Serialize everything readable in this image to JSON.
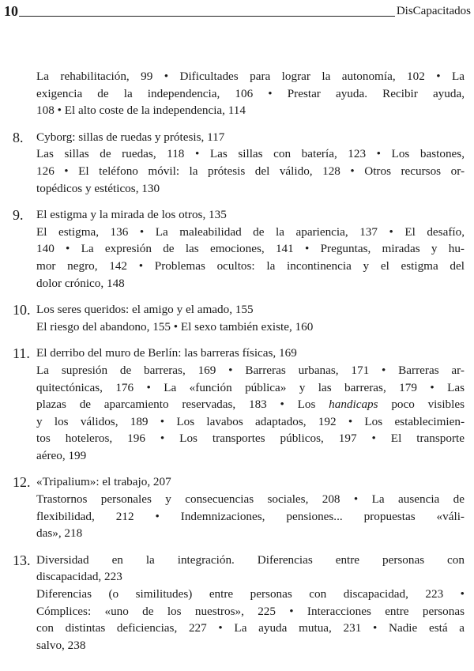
{
  "header": {
    "page_number": "10",
    "running_title": "DisCapacitados"
  },
  "intro_lines": [
    "La rehabilitación, 99 • Dificultades para lograr la autonomía, 102 • La",
    "exigencia de la independencia, 106 • Prestar ayuda. Recibir ayuda,",
    "108 • El alto coste de la independencia, 114"
  ],
  "chapters": [
    {
      "number": "8.",
      "title_lines": [
        "Cyborg: sillas de ruedas y prótesis, 117"
      ],
      "lines": [
        "Las sillas de ruedas, 118 • Las sillas con batería, 123 • Los bastones,",
        "126 • El teléfono móvil: la prótesis del válido, 128 • Otros recursos or-",
        "topédicos y estéticos, 130"
      ]
    },
    {
      "number": "9.",
      "title_lines": [
        "El estigma y la mirada de los otros, 135"
      ],
      "lines": [
        "El estigma, 136 • La maleabilidad de la apariencia, 137 • El desafío,",
        "140 • La expresión de las emociones, 141 • Preguntas, miradas y hu-",
        "mor negro, 142 • Problemas ocultos: la incontinencia y el estigma del",
        "dolor crónico, 148"
      ]
    },
    {
      "number": "10.",
      "title_lines": [
        "Los seres queridos: el amigo y el amado, 155"
      ],
      "lines": [
        "El riesgo del abandono, 155 • El sexo también existe, 160"
      ]
    },
    {
      "number": "11.",
      "title_lines": [
        "El derribo del muro de Berlín: las barreras físicas, 169"
      ],
      "lines": [
        "La supresión de barreras, 169 • Barreras urbanas, 171 • Barreras ar-",
        "quitectónicas, 176 • La «función pública» y las barreras, 179 • Las",
        "plazas de aparcamiento reservadas, 183 • Los handicaps poco visibles",
        "y los válidos, 189 • Los lavabos adaptados, 192 • Los establecimien-",
        "tos hoteleros, 196 • Los transportes públicos, 197 • El transporte",
        "aéreo, 199"
      ]
    },
    {
      "number": "12.",
      "title_lines": [
        "«Tripalium»: el trabajo, 207"
      ],
      "lines": [
        "Trastornos personales y consecuencias sociales, 208 • La ausencia de",
        "flexibilidad, 212 • Indemnizaciones, pensiones... propuestas «váli-",
        "das», 218"
      ]
    },
    {
      "number": "13.",
      "title_lines": [
        "Diversidad en la integración. Diferencias entre personas con",
        "discapacidad, 223"
      ],
      "lines": [
        "Diferencias (o similitudes) entre personas con discapacidad, 223 •",
        "Cómplices: «uno de los nuestros», 225 • Interacciones entre personas",
        "con distintas deficiencias, 227 • La ayuda mutua, 231 • Nadie está a",
        "salvo, 238"
      ]
    }
  ]
}
